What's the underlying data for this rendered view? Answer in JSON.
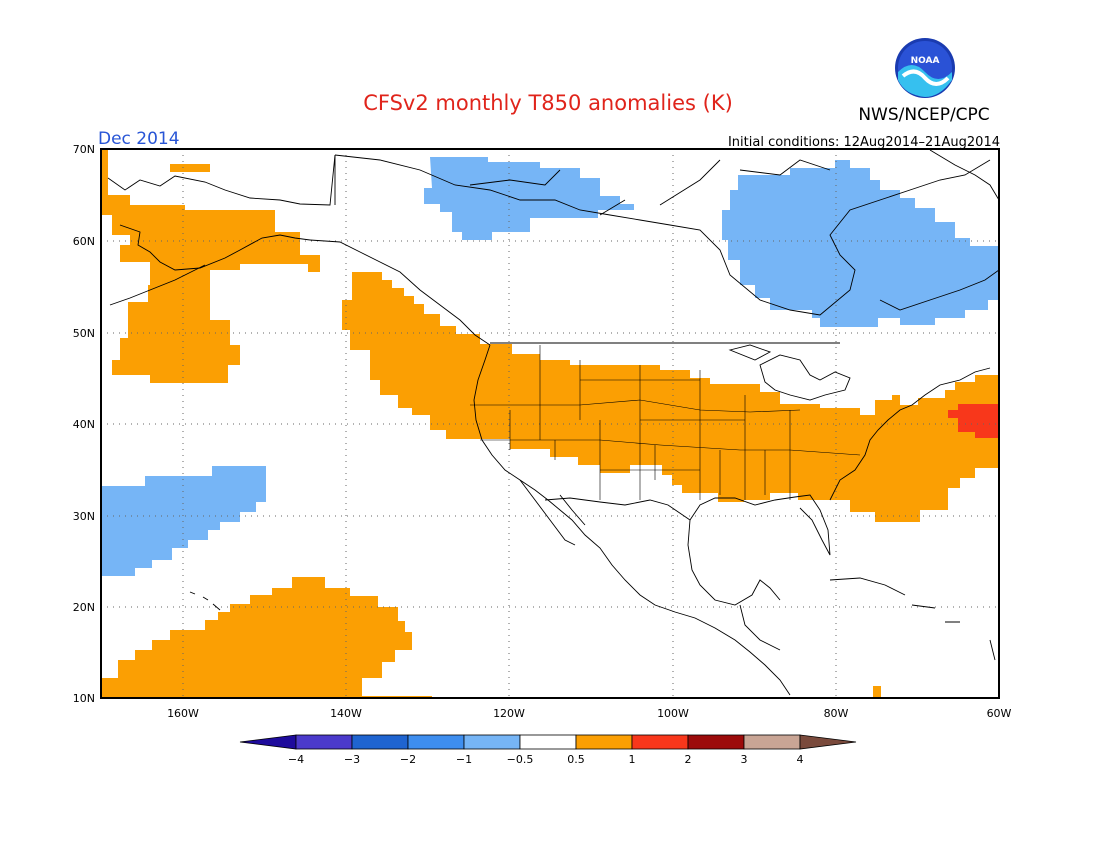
{
  "title": "CFSv2 monthly T850 anomalies (K)",
  "month": "Dec 2014",
  "initial_conditions": "Initial conditions: 12Aug2014–21Aug2014",
  "agency": "NWS/NCEP/CPC",
  "logo_text": "NOAA",
  "colors": {
    "title": "#e0241b",
    "month": "#2855d6",
    "orange": "#fb9f03",
    "red": "#f8371b",
    "lightblue": "#76b5f6",
    "land": "#ffffff",
    "coast": "#000000"
  },
  "map": {
    "lon_range": [
      -170,
      -60
    ],
    "lat_range": [
      10,
      70
    ],
    "lat_labels": [
      "70N",
      "60N",
      "50N",
      "40N",
      "30N",
      "20N",
      "10N"
    ],
    "lon_labels": [
      "160W",
      "140W",
      "120W",
      "100W",
      "80W",
      "60W"
    ],
    "anomaly_regions": [
      {
        "name": "alaska-bering-warm",
        "category": "0.5 to 1"
      },
      {
        "name": "gulf-of-alaska-warm",
        "category": "0.5 to 1"
      },
      {
        "name": "us-warm",
        "category": "0.5 to 1"
      },
      {
        "name": "western-atlantic-warm",
        "category": "1 to 2"
      },
      {
        "name": "subtropical-pacific-warm",
        "category": "0.5 to 1"
      },
      {
        "name": "northern-canada-cool",
        "category": "-1 to -0.5"
      },
      {
        "name": "hudson-bay-cool",
        "category": "-1 to -0.5"
      },
      {
        "name": "central-pacific-cool",
        "category": "-1 to -0.5"
      }
    ]
  },
  "colorbar": {
    "labels": [
      "−4",
      "−3",
      "−2",
      "−1",
      "−0.5",
      "0.5",
      "1",
      "2",
      "3",
      "4"
    ],
    "colors": [
      "#1e0b9c",
      "#4b3acb",
      "#1f64d0",
      "#3e8eef",
      "#76b5f6",
      "#ffffff",
      "#fb9f03",
      "#f8371b",
      "#9c0b0b",
      "#c9a595",
      "#7a4a3c"
    ]
  }
}
